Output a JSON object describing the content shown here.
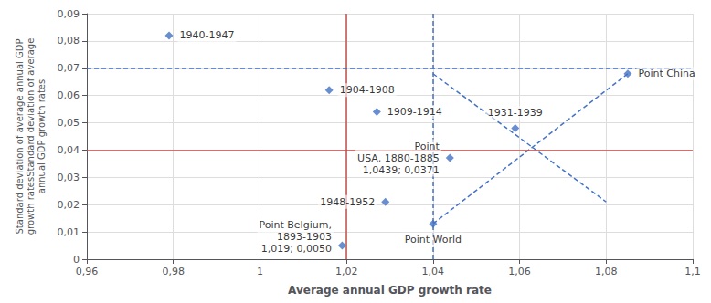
{
  "chart_data": {
    "type": "scatter",
    "xlabel": "Average annual GDP growth rate",
    "ylabel": "Standard deviation of average annual GDP\ngrowth ratesStandard deviation of average\nannual GDP growth rates",
    "xlim": [
      0.96,
      1.1
    ],
    "ylim": [
      0,
      0.09
    ],
    "xticks": [
      {
        "value": 0.96,
        "label": "0,96"
      },
      {
        "value": 0.98,
        "label": "0,98"
      },
      1,
      {
        "value": 1.02,
        "label": "1,02"
      },
      {
        "value": 1.04,
        "label": "1,04"
      },
      {
        "value": 1.06,
        "label": "1,06"
      },
      {
        "value": 1.08,
        "label": "1,08"
      },
      {
        "value": 1.1,
        "label": "1,1"
      }
    ],
    "yticks": [
      0,
      {
        "value": 0.01,
        "label": "0,01"
      },
      {
        "value": 0.02,
        "label": "0,02"
      },
      {
        "value": 0.03,
        "label": "0,03"
      },
      {
        "value": 0.04,
        "label": "0,04"
      },
      {
        "value": 0.05,
        "label": "0,05"
      },
      {
        "value": 0.06,
        "label": "0,06"
      },
      {
        "value": 0.07,
        "label": "0,07"
      },
      {
        "value": 0.08,
        "label": "0,08"
      },
      {
        "value": 0.09,
        "label": "0,09"
      }
    ],
    "grid": true,
    "color": "#4472C4",
    "marker": "diamond",
    "x": [
      0.979,
      1.016,
      1.027,
      1.029,
      1.059,
      1.019,
      1.04,
      1.0439,
      1.085
    ],
    "values": [
      0.082,
      0.062,
      0.054,
      0.021,
      0.048,
      0.005,
      0.013,
      0.0371,
      0.068
    ],
    "annotations": [
      "1940-1947",
      "1904-1908",
      "1909-1914",
      "1948-1952",
      "1931-1939",
      "Point Belgium,\n1893-1903\n1,019; 0,0050",
      "Point World",
      "Point\nUSA, 1880-1885\n1,0439; 0,0371",
      "Point China"
    ],
    "reference_lines": [
      {
        "axis": "y",
        "value": 0.038,
        "color": "#C0504D",
        "line_style": "solid"
      },
      {
        "axis": "x",
        "value": 1.02,
        "color": "#C0504D",
        "line_style": "solid"
      },
      {
        "axis": "y",
        "value": 0.068,
        "color": "#4472C4",
        "line_style": "dashed"
      },
      {
        "axis": "x",
        "value": 1.04,
        "color": "#4472C4",
        "line_style": "dashed"
      }
    ],
    "segments": [
      {
        "x": [
          1.04,
          1.08
        ],
        "y": [
          0.068,
          0.021
        ],
        "color": "#4472C4",
        "line_style": "dashed"
      },
      {
        "x": [
          1.04,
          1.085
        ],
        "y": [
          0.013,
          0.068
        ],
        "color": "#4472C4",
        "line_style": "dashed"
      }
    ]
  }
}
